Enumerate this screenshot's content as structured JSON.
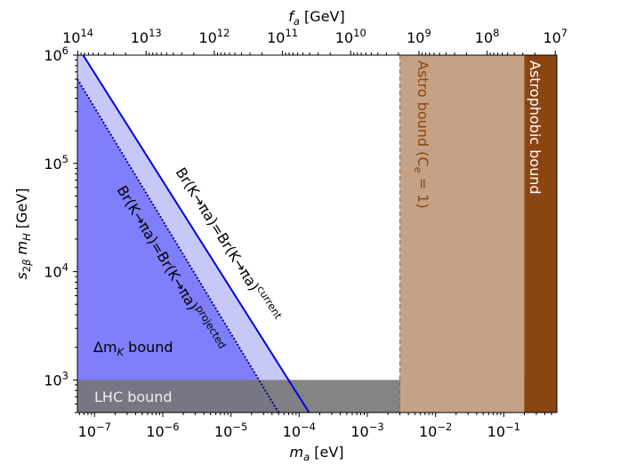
{
  "chart_data": {
    "type": "area",
    "title": "",
    "xlabel": "m_a [eV]",
    "x_top_label": "f_a [GeV]",
    "ylabel": "s_2β m_H [GeV]",
    "xscale": "log",
    "yscale": "log",
    "xlim": [
      5.6e-08,
      0.6
    ],
    "ylim": [
      500,
      1000000
    ],
    "x_ticks": [
      1e-07,
      1e-06,
      1e-05,
      0.0001,
      0.001,
      0.01,
      0.1
    ],
    "x_tick_labels": [
      {
        "base": "10",
        "exp": "−7"
      },
      {
        "base": "10",
        "exp": "−6"
      },
      {
        "base": "10",
        "exp": "−5"
      },
      {
        "base": "10",
        "exp": "−4"
      },
      {
        "base": "10",
        "exp": "−3"
      },
      {
        "base": "10",
        "exp": "−2"
      },
      {
        "base": "10",
        "exp": "−1"
      }
    ],
    "y_ticks": [
      1000,
      10000,
      100000,
      1000000
    ],
    "y_tick_labels": [
      {
        "base": "10",
        "exp": "3"
      },
      {
        "base": "10",
        "exp": "4"
      },
      {
        "base": "10",
        "exp": "5"
      },
      {
        "base": "10",
        "exp": "6"
      }
    ],
    "top_axis": {
      "description": "f_a in GeV, inversely proportional to m_a",
      "ticks_ma": [
        5.7e-08,
        5.7e-07,
        5.7e-06,
        5.7e-05,
        0.00057,
        0.0057,
        0.057,
        0.57
      ],
      "tick_labels": [
        {
          "base": "10",
          "exp": "14"
        },
        {
          "base": "10",
          "exp": "13"
        },
        {
          "base": "10",
          "exp": "12"
        },
        {
          "base": "10",
          "exp": "11"
        },
        {
          "base": "10",
          "exp": "10"
        },
        {
          "base": "10",
          "exp": "9"
        },
        {
          "base": "10",
          "exp": "8"
        },
        {
          "base": "10",
          "exp": "7"
        }
      ]
    },
    "series": [
      {
        "name": "Br(K→πa)=Br(K→πa)^current",
        "kind": "line",
        "style": "solid",
        "color": "#0000dd",
        "points": [
          [
            6.8e-08,
            1000000
          ],
          [
            0.00014,
            500
          ]
        ]
      },
      {
        "name": "Br(K→πa)=Br(K→πa)^projected",
        "kind": "line",
        "style": "dotted",
        "color": "#000088",
        "points": [
          [
            5.6e-08,
            600000
          ],
          [
            5e-05,
            500
          ]
        ]
      }
    ],
    "regions": [
      {
        "name": "current exclusion",
        "color": "#c8c8f8",
        "fill_under": "current"
      },
      {
        "name": "Δm_K bound",
        "color": "#7f7ffc",
        "fill_under": "projected"
      },
      {
        "name": "LHC bound",
        "color": "#777777",
        "opacity": 0.9,
        "x_range": [
          5.6e-08,
          0.6
        ],
        "y_range": [
          500,
          1000
        ]
      },
      {
        "name": "Astro bound (C_e = 1)",
        "color": "#c5a286",
        "x_range": [
          0.003,
          0.2
        ],
        "y_range": [
          500,
          1000000
        ]
      },
      {
        "name": "Astrophobic bound",
        "color": "#8b4513",
        "x_range": [
          0.2,
          0.6
        ],
        "y_range": [
          500,
          1000000
        ]
      }
    ],
    "annotations": {
      "current_line": {
        "main": "Br(K→πa)=Br(K→πa)",
        "sup": "current",
        "color": "#000000"
      },
      "projected_line": {
        "main": "Br(K→πa)=Br(K→πa)",
        "sup": "projected",
        "color": "#000000"
      },
      "dmk": {
        "main": "Δm",
        "sub": "K",
        "rest": " bound",
        "color": "#000000"
      },
      "lhc": {
        "text": "LHC bound",
        "color": "#eeeeee"
      },
      "astro": {
        "text": "Astro bound (C",
        "sub": "e",
        "rest": " = 1)",
        "color": "#8b4513"
      },
      "astrophobic": {
        "text": "Astrophobic bound",
        "color": "#ffffff"
      }
    },
    "grid": false,
    "legend": "none"
  }
}
